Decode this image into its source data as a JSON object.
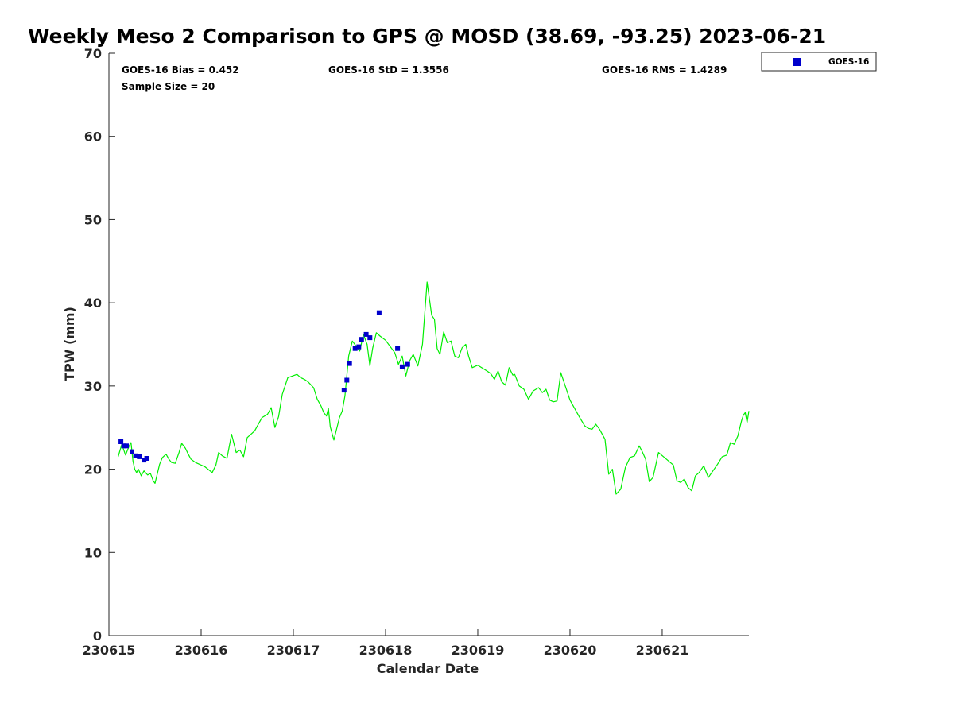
{
  "chart_data": {
    "type": "line+scatter",
    "title": "Weekly Meso 2 Comparison to GPS @ MOSD (38.69, -93.25) 2023-06-21",
    "xlabel": "Calendar Date",
    "ylabel": "TPW (mm)",
    "xlim": [
      230615,
      230621.94
    ],
    "ylim": [
      0,
      70
    ],
    "yticks": [
      0,
      10,
      20,
      30,
      40,
      50,
      60,
      70
    ],
    "xticks": [
      {
        "value": 230615,
        "label": "230615"
      },
      {
        "value": 230616,
        "label": "230616"
      },
      {
        "value": 230617,
        "label": "230617"
      },
      {
        "value": 230618,
        "label": "230618"
      },
      {
        "value": 230619,
        "label": "230619"
      },
      {
        "value": 230620,
        "label": "230620"
      },
      {
        "value": 230621,
        "label": "230621"
      }
    ],
    "stats": {
      "bias": "GOES-16 Bias = 0.452",
      "std": "GOES-16 StD = 1.3556",
      "rms": "GOES-16 RMS = 1.4289",
      "sample": "Sample Size = 20"
    },
    "legend": [
      {
        "name": "GOES-16",
        "marker": "square",
        "color": "#0000cc"
      }
    ],
    "colors": {
      "gps_line": "#00ee00",
      "goes_marker": "#0000cc"
    },
    "series": [
      {
        "name": "GPS",
        "kind": "line",
        "x": [
          230615.1,
          230615.14,
          230615.18,
          230615.22,
          230615.24,
          230615.26,
          230615.28,
          230615.3,
          230615.32,
          230615.35,
          230615.38,
          230615.42,
          230615.45,
          230615.48,
          230615.5,
          230615.55,
          230615.58,
          230615.62,
          230615.65,
          230615.68,
          230615.72,
          230615.76,
          230615.79,
          230615.83,
          230615.86,
          230615.89,
          230615.94,
          230616.04,
          230616.12,
          230616.16,
          230616.19,
          230616.23,
          230616.28,
          230616.33,
          230616.38,
          230616.42,
          230616.46,
          230616.5,
          230616.58,
          230616.66,
          230616.72,
          230616.76,
          230616.8,
          230616.84,
          230616.88,
          230616.94,
          230617.04,
          230617.08,
          230617.12,
          230617.16,
          230617.22,
          230617.26,
          230617.3,
          230617.33,
          230617.36,
          230617.38,
          230617.4,
          230617.44,
          230617.5,
          230617.53,
          230617.56,
          230617.6,
          230617.64,
          230617.68,
          230617.72,
          230617.76,
          230617.8,
          230617.83,
          230617.86,
          230617.9,
          230617.94,
          230618.0,
          230618.1,
          230618.14,
          230618.18,
          230618.22,
          230618.26,
          230618.3,
          230618.35,
          230618.4,
          230618.45,
          230618.5,
          230618.53,
          230618.56,
          230618.59,
          230618.63,
          230618.67,
          230618.71,
          230618.75,
          230618.79,
          230618.83,
          230618.87,
          230618.9,
          230618.94,
          230619.0,
          230619.1,
          230619.14,
          230619.18,
          230619.22,
          230619.26,
          230619.3,
          230619.34,
          230619.38,
          230619.4,
          230619.45,
          230619.5,
          230619.55,
          230619.6,
          230619.66,
          230619.7,
          230619.74,
          230619.78,
          230619.82,
          230619.86,
          230619.9,
          230620.0,
          230620.1,
          230620.16,
          230620.2,
          230620.24,
          230620.28,
          230620.32,
          230620.38,
          230620.42,
          230620.46,
          230620.5,
          230620.55,
          230620.6,
          230620.65,
          230620.7,
          230620.75,
          230620.78,
          230620.82,
          230620.86,
          230620.9,
          230620.96,
          230621.12,
          230621.16,
          230621.2,
          230621.24,
          230621.28,
          230621.32,
          230621.36,
          230621.4,
          230621.45,
          230621.5,
          230621.55,
          230621.6,
          230621.65,
          230621.7,
          230621.74,
          230621.78,
          230621.82,
          230621.86,
          230621.88,
          230621.9,
          230621.92,
          230621.94
        ],
        "y": [
          21.5,
          23.0,
          21.7,
          22.8,
          23.2,
          21.0,
          20.0,
          19.6,
          20.0,
          19.2,
          19.8,
          19.3,
          19.5,
          18.6,
          18.3,
          20.6,
          21.4,
          21.8,
          21.2,
          20.8,
          20.7,
          22.0,
          23.1,
          22.5,
          21.8,
          21.2,
          20.8,
          20.3,
          19.6,
          20.5,
          22.0,
          21.6,
          21.3,
          24.2,
          22.0,
          22.3,
          21.5,
          23.8,
          24.6,
          26.2,
          26.6,
          27.4,
          25.0,
          26.3,
          29.0,
          31.0,
          31.4,
          31.0,
          30.8,
          30.5,
          29.8,
          28.4,
          27.6,
          26.8,
          26.4,
          27.3,
          25.1,
          23.5,
          26.2,
          27.0,
          28.8,
          33.6,
          35.4,
          34.8,
          34.2,
          36.2,
          35.0,
          32.4,
          34.5,
          36.4,
          36.0,
          35.5,
          34.0,
          32.6,
          33.6,
          31.2,
          33.0,
          33.8,
          32.4,
          35.0,
          42.5,
          38.5,
          38.0,
          34.5,
          33.8,
          36.5,
          35.2,
          35.4,
          33.6,
          33.4,
          34.6,
          35.0,
          33.6,
          32.2,
          32.5,
          31.8,
          31.5,
          30.8,
          31.8,
          30.5,
          30.1,
          32.2,
          31.3,
          31.4,
          30.0,
          29.6,
          28.4,
          29.4,
          29.8,
          29.2,
          29.6,
          28.3,
          28.1,
          28.2,
          31.6,
          28.3,
          26.3,
          25.2,
          24.9,
          24.8,
          25.4,
          24.8,
          23.6,
          19.4,
          20.0,
          17.0,
          17.6,
          20.2,
          21.4,
          21.6,
          22.8,
          22.2,
          21.2,
          18.5,
          19.0,
          22.0,
          20.5,
          18.6,
          18.4,
          18.8,
          17.8,
          17.4,
          19.2,
          19.6,
          20.4,
          19.0,
          19.8,
          20.6,
          21.5,
          21.7,
          23.2,
          23.0,
          24.0,
          25.8,
          26.5,
          26.8,
          25.6,
          27.0
        ]
      },
      {
        "name": "GOES-16",
        "kind": "scatter",
        "x": [
          230615.13,
          230615.16,
          230615.19,
          230615.25,
          230615.29,
          230615.33,
          230615.38,
          230615.41,
          230617.55,
          230617.58,
          230617.61,
          230617.67,
          230617.71,
          230617.74,
          230617.79,
          230617.83,
          230617.93,
          230618.13,
          230618.18,
          230618.24
        ],
        "y": [
          23.3,
          22.8,
          22.8,
          22.1,
          21.6,
          21.5,
          21.1,
          21.3,
          29.5,
          30.7,
          32.7,
          34.5,
          34.7,
          35.6,
          36.2,
          35.8,
          38.8,
          34.5,
          32.3,
          32.6
        ]
      }
    ]
  }
}
